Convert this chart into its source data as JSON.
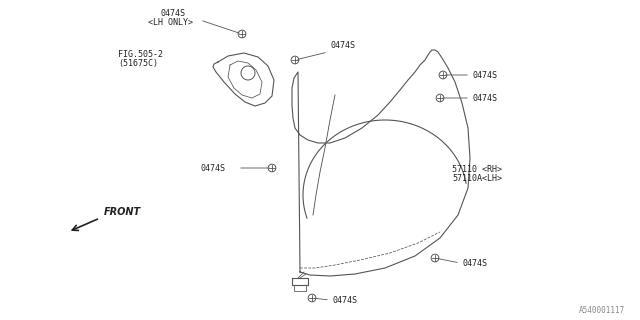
{
  "bg_color": "#ffffff",
  "line_color": "#555555",
  "text_color": "#222222",
  "fig_width": 6.4,
  "fig_height": 3.2,
  "watermark": "A540001117",
  "label_0474S": "0474S",
  "label_lh_only": "<LH ONLY>",
  "label_fig": "FIG.505-2",
  "label_fig2": "(51675C)",
  "label_57110a": "57110 <RH>",
  "label_57110b": "57110A<LH>",
  "label_front": "FRONT"
}
